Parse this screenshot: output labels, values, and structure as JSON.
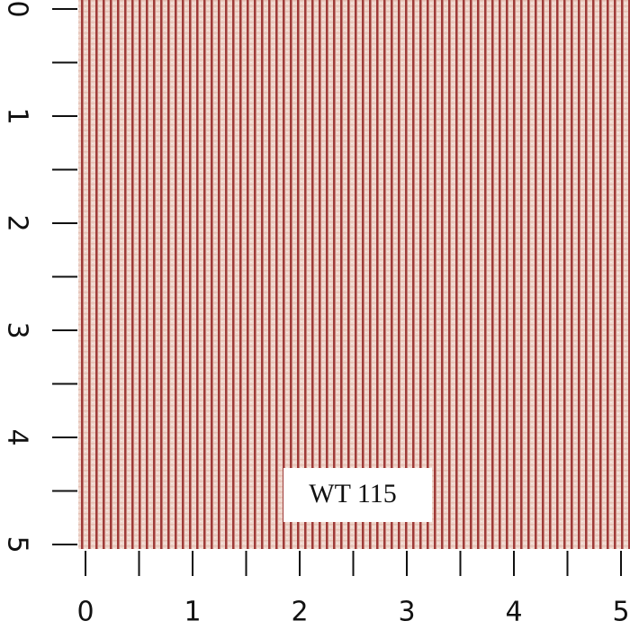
{
  "left_ruler": [
    0,
    1,
    2,
    3,
    4,
    5
  ],
  "bottom_ruler": [
    0,
    1,
    2,
    3,
    4,
    5
  ],
  "label": "WT 115"
}
